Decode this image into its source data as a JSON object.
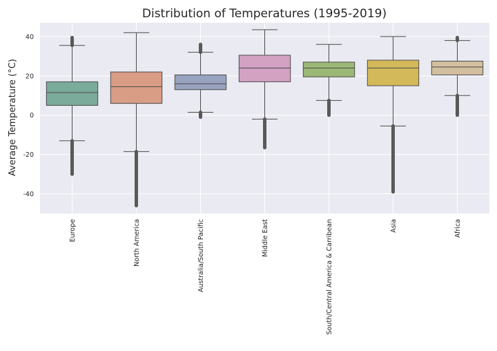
{
  "chart_data": {
    "type": "box",
    "title": "Distribution of Temperatures (1995-2019)",
    "xlabel": "",
    "ylabel": "Average Temperature (°C)",
    "ylim": [
      -50,
      47
    ],
    "yticks": [
      -40,
      -20,
      0,
      20,
      40
    ],
    "grid": true,
    "legend": "none",
    "categories": [
      "Europe",
      "North America",
      "Australia/South Pacific",
      "Middle East",
      "South/Central America & Carribean",
      "Asia",
      "Africa"
    ],
    "boxes": [
      {
        "category": "Europe",
        "whisker_low": -13,
        "q1": 5,
        "median": 11.5,
        "q3": 17,
        "whisker_high": 35.5,
        "outliers_low": [
          -30,
          -13
        ],
        "outliers_high": [
          35.5,
          39.5
        ],
        "color": "#7aab9b"
      },
      {
        "category": "North America",
        "whisker_low": -18.5,
        "q1": 6,
        "median": 14.5,
        "q3": 22,
        "whisker_high": 42,
        "outliers_low": [
          -46,
          -18.5
        ],
        "outliers_high": [],
        "color": "#d99c84"
      },
      {
        "category": "Australia/South Pacific",
        "whisker_low": 1.5,
        "q1": 13,
        "median": 16,
        "q3": 20.5,
        "whisker_high": 32,
        "outliers_low": [
          -1,
          1.5
        ],
        "outliers_high": [
          32,
          36
        ],
        "color": "#97a3bf"
      },
      {
        "category": "Middle East",
        "whisker_low": -2,
        "q1": 17,
        "median": 24,
        "q3": 30.5,
        "whisker_high": 43.5,
        "outliers_low": [
          -16.5,
          -2
        ],
        "outliers_high": [],
        "color": "#d3a1c2"
      },
      {
        "category": "South/Central America & Carribean",
        "whisker_low": 7.5,
        "q1": 19.5,
        "median": 24,
        "q3": 27,
        "whisker_high": 36,
        "outliers_low": [
          0,
          7.5
        ],
        "outliers_high": [],
        "color": "#9bb876"
      },
      {
        "category": "Asia",
        "whisker_low": -5.5,
        "q1": 15,
        "median": 24,
        "q3": 28,
        "whisker_high": 40,
        "outliers_low": [
          -39,
          -5.5
        ],
        "outliers_high": [],
        "color": "#d3b95a"
      },
      {
        "category": "Africa",
        "whisker_low": 10,
        "q1": 20.5,
        "median": 24.5,
        "q3": 27.5,
        "whisker_high": 38,
        "outliers_low": [
          0,
          10
        ],
        "outliers_high": [
          38,
          39.5
        ],
        "color": "#d2bf9f"
      }
    ]
  }
}
